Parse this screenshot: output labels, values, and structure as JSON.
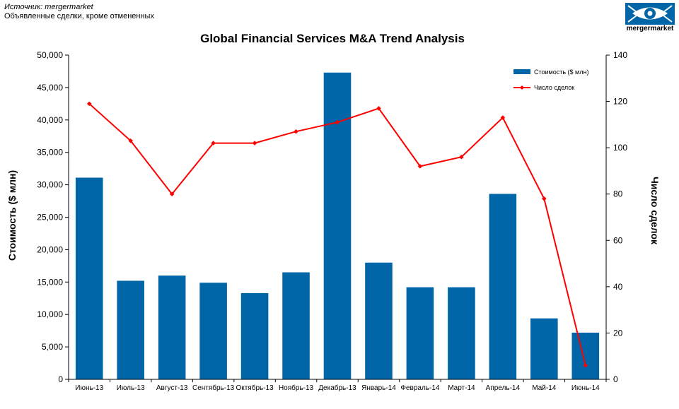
{
  "header": {
    "source": "Источник: mergermarket",
    "subtitle": "Объявленные сделки, кроме отмененных"
  },
  "logo": {
    "text": "mergermarket",
    "icon": "eye-icon",
    "color": "#0066a8"
  },
  "chart_data": {
    "type": "bar+line",
    "title": "Global Financial Services M&A Trend  Analysis",
    "categories": [
      "Июнь-13",
      "Июль-13",
      "Август-13",
      "Сентябрь-13",
      "Октябрь-13",
      "Ноябрь-13",
      "Декабрь-13",
      "Январь-14",
      "Февраль-14",
      "Март-14",
      "Апрель-14",
      "Май-14",
      "Июнь-14"
    ],
    "series": [
      {
        "name": "Стоимость ($ млн)",
        "type": "bar",
        "axis": "left",
        "color": "#0066a8",
        "values": [
          31100,
          15200,
          16000,
          14900,
          13300,
          16500,
          47300,
          18000,
          14200,
          14200,
          28600,
          9400,
          7200
        ]
      },
      {
        "name": "Число сделок",
        "type": "line",
        "axis": "right",
        "color": "#ff0000",
        "values": [
          119,
          103,
          80,
          102,
          102,
          107,
          111,
          117,
          92,
          96,
          113,
          78,
          6
        ]
      }
    ],
    "ylabel": "Стоимость ($ млн)",
    "y2label": "Число сделок",
    "ylim": [
      0,
      50000
    ],
    "y2lim": [
      0,
      140
    ],
    "yticks": [
      "0",
      "5,000",
      "10,000",
      "15,000",
      "20,000",
      "25,000",
      "30,000",
      "35,000",
      "40,000",
      "45,000",
      "50,000"
    ],
    "y2ticks": [
      "0",
      "20",
      "40",
      "60",
      "80",
      "100",
      "120",
      "140"
    ],
    "grid": false,
    "legend": "top-right"
  }
}
